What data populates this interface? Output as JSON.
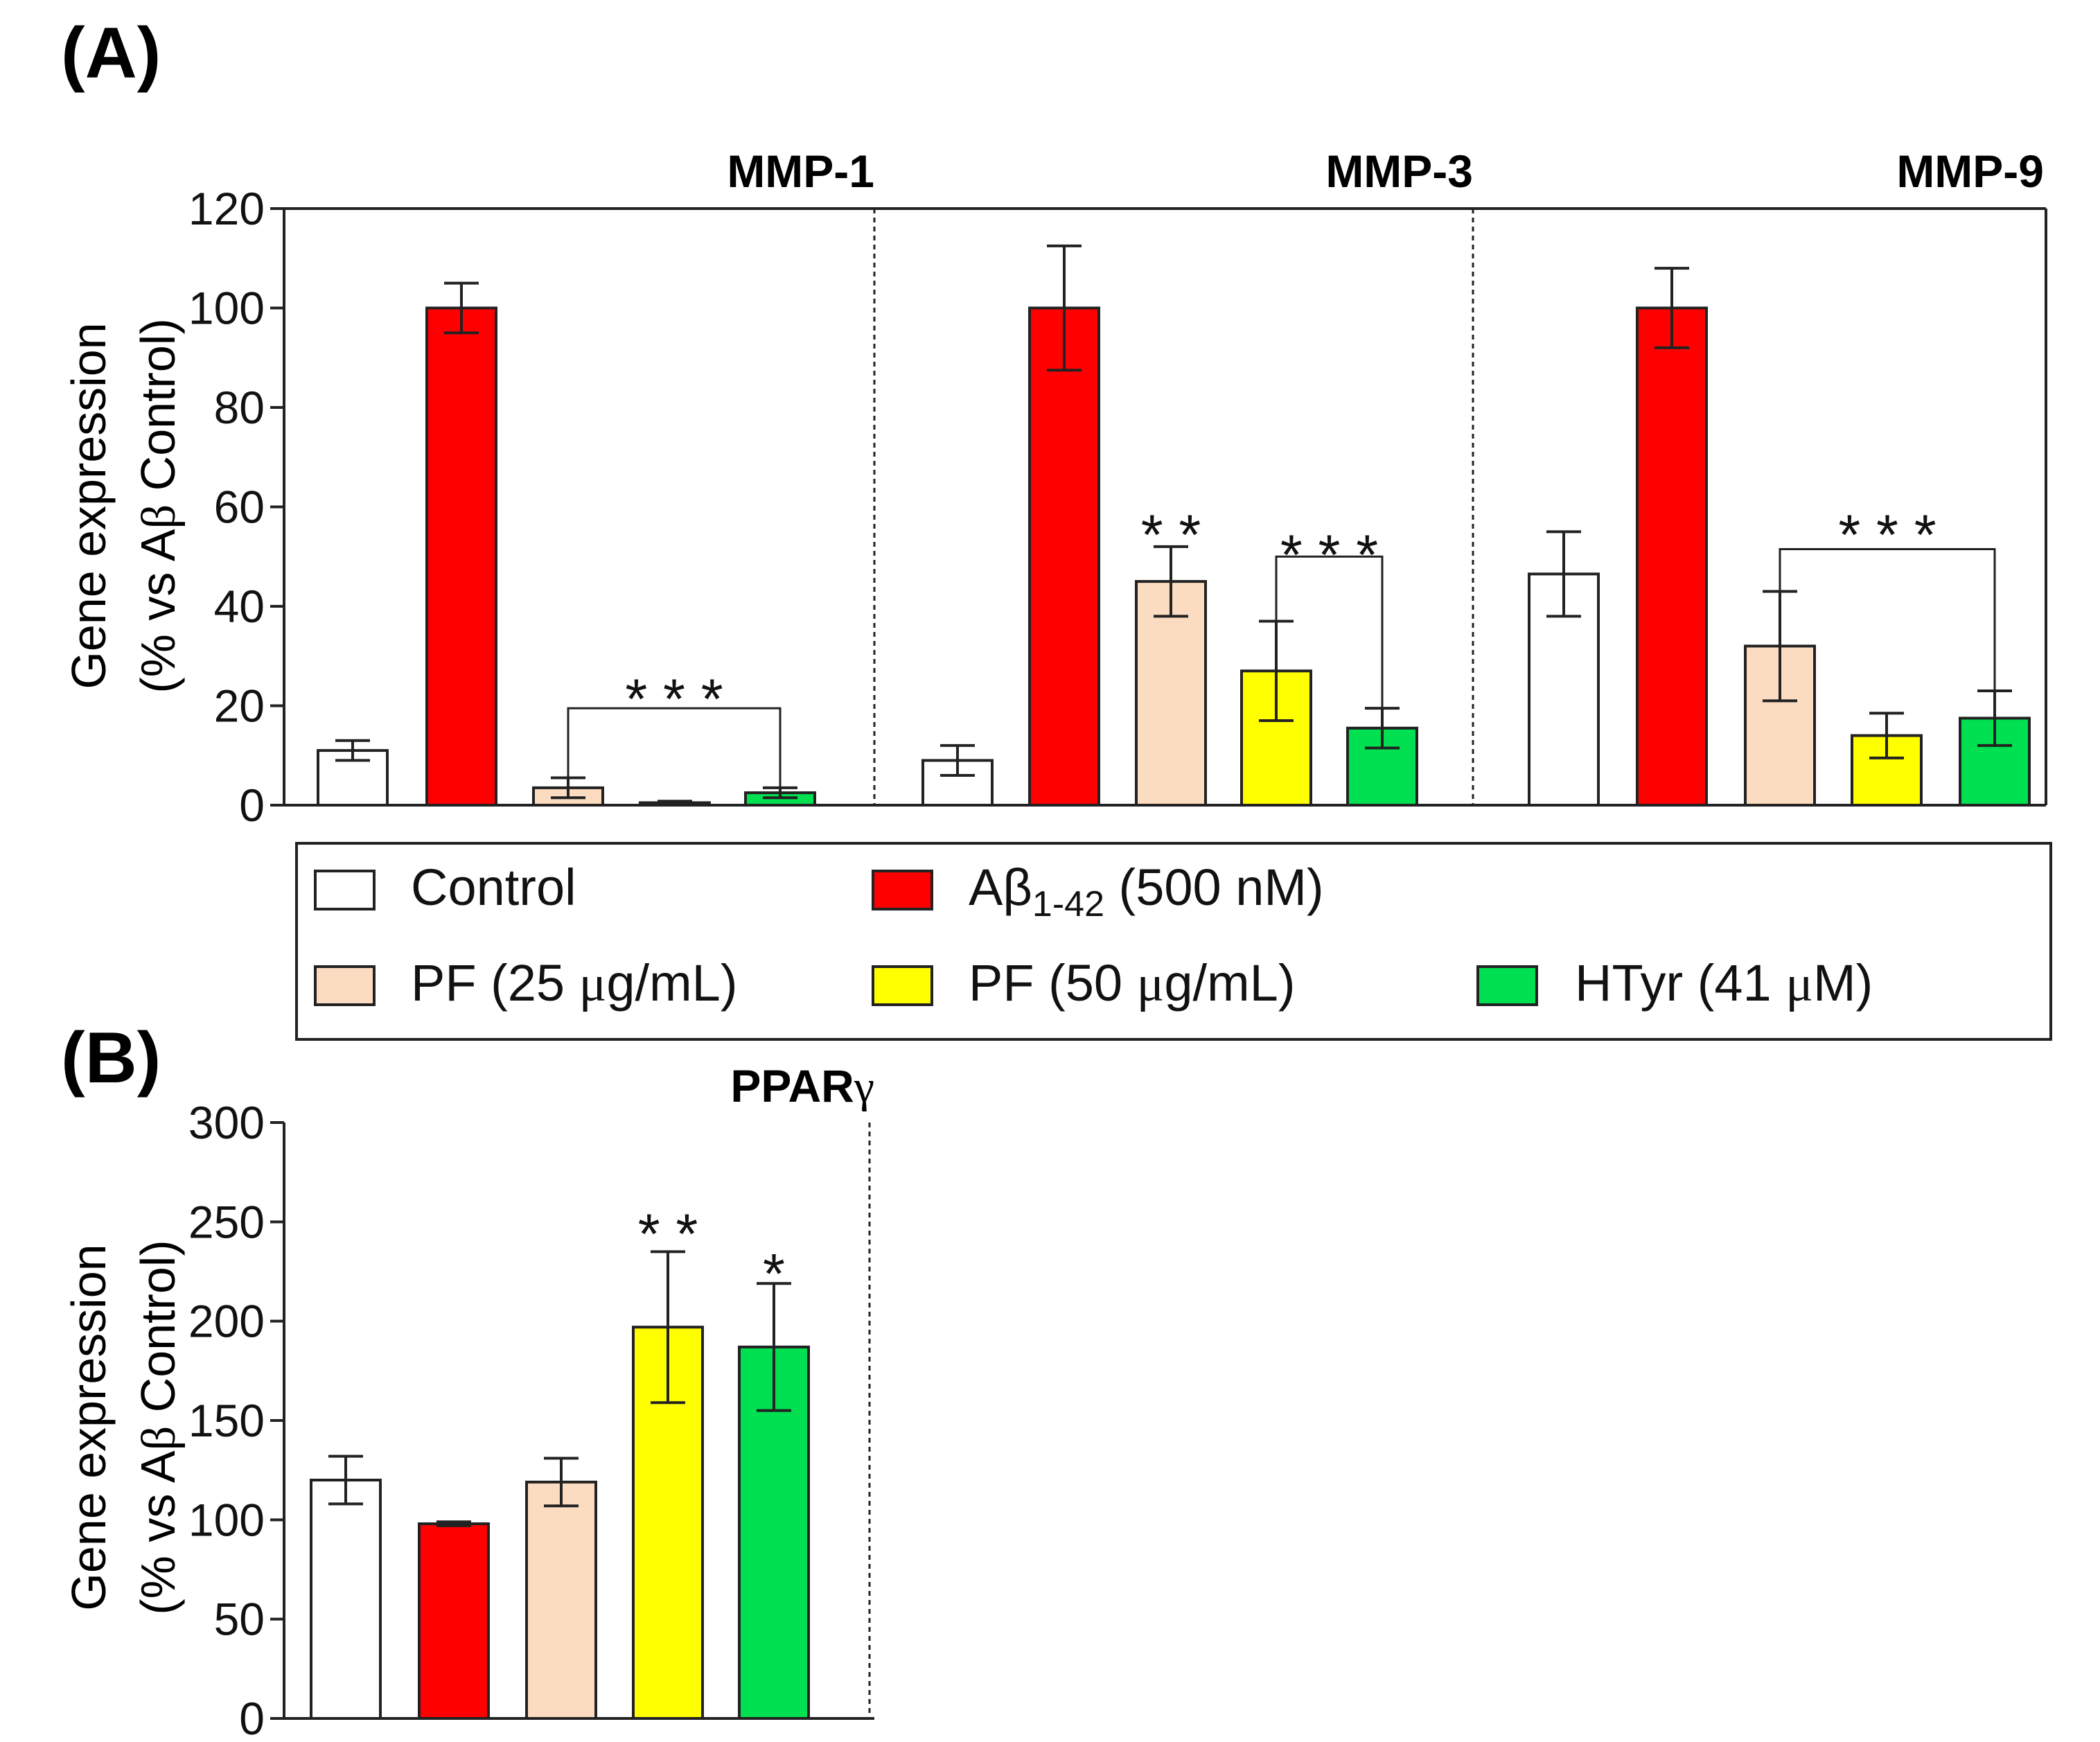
{
  "panel_labels": {
    "a": "(A)",
    "b": "(B)"
  },
  "y_title": {
    "line1": "Gene expression",
    "line2_pre": "(% vs A",
    "line2_beta": "β",
    "line2_post": " Control)"
  },
  "colors": {
    "Control": "#ffffff",
    "Abeta": "#ff0000",
    "PF25": "#fbdcc0",
    "PF50": "#ffff00",
    "HTyr": "#00e050",
    "axis": "#222222"
  },
  "legend": {
    "control": "Control",
    "abeta_pre": "Aβ",
    "abeta_sub": "1-42",
    "abeta_post": " (500 nM)",
    "pf25_pre": "PF (25 ",
    "pf25_mu": "μ",
    "pf25_post": "g/mL)",
    "pf50_pre": "PF (50 ",
    "pf50_mu": "μ",
    "pf50_post": "g/mL)",
    "htyr_pre": "HTyr (41 ",
    "htyr_mu": "μ",
    "htyr_post": "M)"
  },
  "chart_data": [
    {
      "type": "bar",
      "panel": "(A)",
      "ylabel": "Gene expression (% vs Aβ Control)",
      "ylim": [
        0,
        120
      ],
      "yticks": [
        "0",
        "20",
        "40",
        "60",
        "80",
        "100",
        "120"
      ],
      "groups": [
        {
          "title": "MMP-1",
          "values": [
            11,
            100,
            3.5,
            0.5,
            2.5
          ],
          "errors": [
            2,
            5,
            2,
            0.3,
            1
          ],
          "annotations": [
            {
              "text": "* * *",
              "type": "bracket",
              "from": 2,
              "to": 4,
              "level": 19.5,
              "label_y": 23
            }
          ]
        },
        {
          "title": "MMP-3",
          "values": [
            9,
            100,
            45,
            27,
            15.5
          ],
          "errors": [
            3,
            12.5,
            7,
            10,
            4
          ],
          "annotations": [
            {
              "text": "* *",
              "type": "label",
              "bar": 2,
              "label_y": 56
            },
            {
              "text": "* * *",
              "type": "bracket",
              "from": 3,
              "to": 4,
              "level": 50,
              "label_y": 52
            }
          ]
        },
        {
          "title": "MMP-9",
          "values": [
            46.5,
            100,
            32,
            14,
            17.5
          ],
          "errors": [
            8.5,
            8,
            11,
            4.5,
            5.5
          ],
          "annotations": [
            {
              "text": "* * *",
              "type": "bracket",
              "from": 2,
              "to": 4,
              "level": 51.5,
              "label_y": 56
            }
          ]
        }
      ]
    },
    {
      "type": "bar",
      "panel": "(B)",
      "ylabel": "Gene expression (% vs Aβ Control)",
      "ylim": [
        0,
        300
      ],
      "yticks": [
        "0",
        "50",
        "100",
        "150",
        "200",
        "250",
        "300"
      ],
      "groups": [
        {
          "title_pre": "PPAR",
          "title_gamma": "γ",
          "values": [
            120,
            98,
            119,
            197,
            187
          ],
          "errors": [
            12,
            1,
            12,
            38,
            32
          ],
          "annotations": [
            {
              "text": "* *",
              "type": "label",
              "bar": 3,
              "label_y": 248
            },
            {
              "text": "*",
              "type": "label",
              "bar": 4,
              "label_y": 228
            }
          ]
        }
      ]
    }
  ]
}
